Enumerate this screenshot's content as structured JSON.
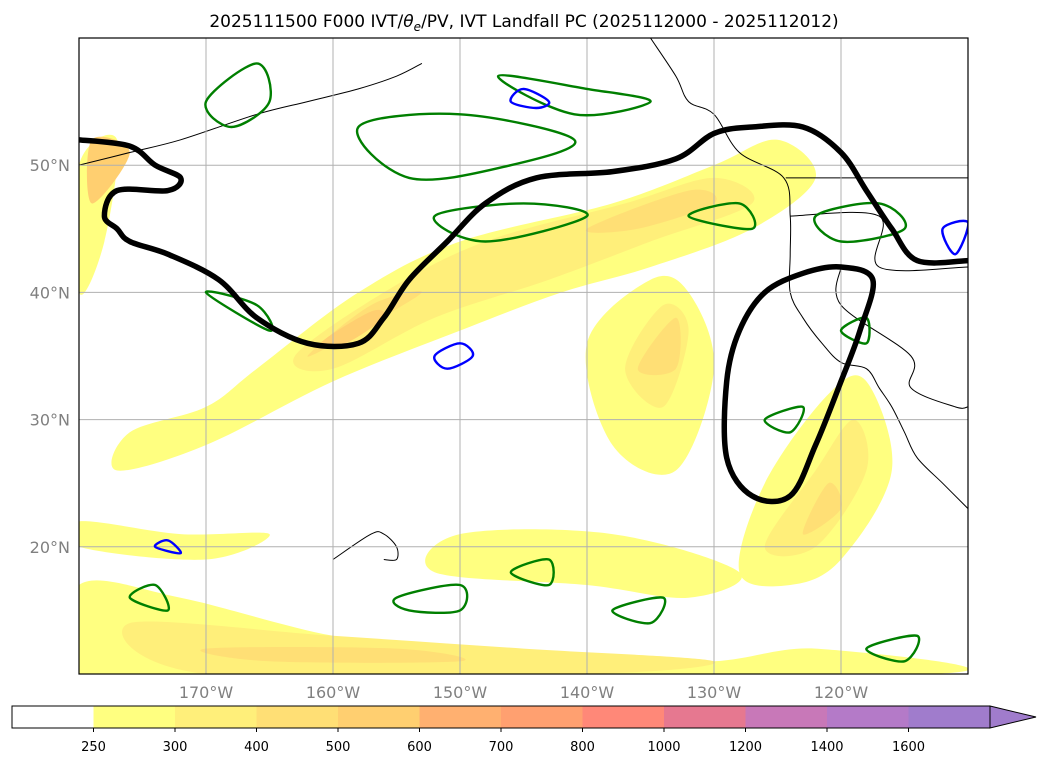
{
  "chart_data": {
    "type": "map",
    "title": "2025111500 F000 IVT/θe/PV, IVT Landfall PC (2025112000 - 2025112012)",
    "title_parts": {
      "before": "2025111500 F000 IVT/",
      "theta": "θ",
      "sub": "e",
      "after": "/PV, IVT Landfall PC (2025112000 - 2025112012)"
    },
    "lon_range": [
      -180,
      -110
    ],
    "lat_range": [
      10,
      60
    ],
    "lon_ticks": [
      {
        "value": -170,
        "label": "170°W"
      },
      {
        "value": -160,
        "label": "160°W"
      },
      {
        "value": -150,
        "label": "150°W"
      },
      {
        "value": -140,
        "label": "140°W"
      },
      {
        "value": -130,
        "label": "130°W"
      },
      {
        "value": -120,
        "label": "120°W"
      }
    ],
    "lat_ticks": [
      {
        "value": 20,
        "label": "20°N"
      },
      {
        "value": 30,
        "label": "30°N"
      },
      {
        "value": 40,
        "label": "40°N"
      },
      {
        "value": 50,
        "label": "50°N"
      }
    ],
    "colorbar": {
      "levels": [
        "250",
        "300",
        "400",
        "500",
        "600",
        "700",
        "800",
        "1000",
        "1200",
        "1400",
        "1600"
      ],
      "colors": [
        "#ffffff",
        "#ffff80",
        "#ffef7a",
        "#ffdf75",
        "#ffcf70",
        "#ffb070",
        "#ffa070",
        "#ff8878",
        "#e67890",
        "#c878b8",
        "#b47ac8",
        "#a07ccc"
      ]
    },
    "ivt_shading": [
      {
        "level": 250,
        "color": "#ffff80",
        "regions": [
          [
            [
              -180,
              50
            ],
            [
              -177,
              52
            ],
            [
              -178,
              44
            ],
            [
              -180,
              40
            ]
          ],
          [
            [
              -166,
              34
            ],
            [
              -158,
              40
            ],
            [
              -150,
              44
            ],
            [
              -138,
              47
            ],
            [
              -130,
              50
            ],
            [
              -125,
              52
            ],
            [
              -122,
              49
            ],
            [
              -127,
              45
            ],
            [
              -135,
              42
            ],
            [
              -142,
              40
            ],
            [
              -150,
              37
            ],
            [
              -160,
              33
            ],
            [
              -170,
              28
            ],
            [
              -177,
              26
            ],
            [
              -176,
              29
            ],
            [
              -170,
              31
            ]
          ],
          [
            [
              -140,
              36
            ],
            [
              -135,
              41
            ],
            [
              -132,
              40
            ],
            [
              -130,
              34
            ],
            [
              -133,
              26
            ],
            [
              -138,
              28
            ]
          ],
          [
            [
              -128,
              18
            ],
            [
              -126,
              25
            ],
            [
              -121,
              32
            ],
            [
              -118,
              33
            ],
            [
              -116,
              26
            ],
            [
              -120,
              19
            ],
            [
              -124,
              17
            ]
          ],
          [
            [
              -180,
              17
            ],
            [
              -172,
              16
            ],
            [
              -160,
              13
            ],
            [
              -150,
              12
            ],
            [
              -140,
              11
            ],
            [
              -130,
              11
            ],
            [
              -122,
              12
            ],
            [
              -113,
              10
            ],
            [
              -180,
              10
            ]
          ],
          [
            [
              -180,
              20
            ],
            [
              -170,
              19
            ],
            [
              -165,
              21
            ],
            [
              -172,
              21
            ],
            [
              -180,
              22
            ]
          ],
          [
            [
              -152,
              18
            ],
            [
              -140,
              17
            ],
            [
              -132,
              16
            ],
            [
              -128,
              18
            ],
            [
              -138,
              21
            ],
            [
              -150,
              21
            ]
          ]
        ]
      },
      {
        "level": 300,
        "color": "#ffef7a",
        "regions": [
          [
            [
              -163,
              35
            ],
            [
              -156,
              40
            ],
            [
              -148,
              44
            ],
            [
              -137,
              47
            ],
            [
              -130,
              49
            ],
            [
              -127,
              47
            ],
            [
              -135,
              44
            ],
            [
              -143,
              41
            ],
            [
              -152,
              38
            ],
            [
              -160,
              34
            ]
          ],
          [
            [
              -137,
              34
            ],
            [
              -134,
              39
            ],
            [
              -132,
              37
            ],
            [
              -134,
              31
            ]
          ],
          [
            [
              -126,
              20
            ],
            [
              -122,
              26
            ],
            [
              -119,
              30
            ],
            [
              -118,
              26
            ],
            [
              -122,
              20
            ]
          ],
          [
            [
              -176,
              14
            ],
            [
              -160,
              13
            ],
            [
              -145,
              12
            ],
            [
              -130,
              11
            ],
            [
              -140,
              10
            ],
            [
              -170,
              10
            ]
          ]
        ]
      },
      {
        "level": 400,
        "color": "#ffdf75",
        "regions": [
          [
            [
              -162,
              35
            ],
            [
              -157,
              39
            ],
            [
              -153,
              40
            ],
            [
              -158,
              37
            ]
          ],
          [
            [
              -140,
              45
            ],
            [
              -132,
              48
            ],
            [
              -130,
              47
            ],
            [
              -136,
              45
            ]
          ],
          [
            [
              -136,
              34
            ],
            [
              -133,
              38
            ],
            [
              -133,
              34
            ]
          ],
          [
            [
              -123,
              21
            ],
            [
              -121,
              25
            ],
            [
              -120,
              23
            ]
          ],
          [
            [
              -170,
              12
            ],
            [
              -155,
              12
            ],
            [
              -150,
              11
            ],
            [
              -165,
              11
            ]
          ]
        ]
      },
      {
        "level": 500,
        "color": "#ffcf70",
        "regions": [
          [
            [
              -161,
              36
            ],
            [
              -157,
              38.5
            ],
            [
              -156,
              38
            ],
            [
              -159,
              36
            ]
          ],
          [
            [
              -176,
              51
            ],
            [
              -179,
              52
            ],
            [
              -179,
              47
            ]
          ]
        ]
      }
    ],
    "pc_contours": [
      [
        [
          -180,
          52
        ],
        [
          -176,
          51.5
        ],
        [
          -174,
          50
        ],
        [
          -172,
          49
        ],
        [
          -173,
          48
        ],
        [
          -177,
          48
        ],
        [
          -178,
          46
        ],
        [
          -177,
          45
        ],
        [
          -176,
          44
        ],
        [
          -173,
          43
        ],
        [
          -169,
          41
        ],
        [
          -166,
          38
        ],
        [
          -162,
          36
        ],
        [
          -158,
          36
        ],
        [
          -156,
          38
        ],
        [
          -154,
          41
        ],
        [
          -151,
          44
        ],
        [
          -148,
          47
        ],
        [
          -144,
          49
        ],
        [
          -138,
          49.5
        ],
        [
          -133,
          50.5
        ],
        [
          -130,
          52.5
        ],
        [
          -127,
          53
        ],
        [
          -123,
          53
        ],
        [
          -120,
          51
        ],
        [
          -118,
          48
        ],
        [
          -116,
          45
        ],
        [
          -114,
          42.5
        ],
        [
          -110,
          42.5
        ]
      ],
      [
        [
          -123,
          41.5
        ],
        [
          -120,
          42
        ],
        [
          -117.5,
          41
        ],
        [
          -118.5,
          37
        ],
        [
          -120,
          33
        ],
        [
          -122,
          28
        ],
        [
          -124,
          24
        ],
        [
          -127,
          24
        ],
        [
          -129,
          27
        ],
        [
          -129,
          33
        ],
        [
          -128,
          37
        ],
        [
          -126,
          40
        ]
      ]
    ],
    "pv_green": [
      [
        [
          -170,
          55
        ],
        [
          -166,
          58
        ],
        [
          -165,
          55
        ],
        [
          -168,
          53
        ]
      ],
      [
        [
          -158,
          53
        ],
        [
          -150,
          54
        ],
        [
          -141,
          52
        ],
        [
          -146,
          50
        ],
        [
          -154,
          49
        ]
      ],
      [
        [
          -147,
          57
        ],
        [
          -140,
          56
        ],
        [
          -135,
          55
        ],
        [
          -141,
          54
        ]
      ],
      [
        [
          -152,
          46
        ],
        [
          -145,
          47
        ],
        [
          -140,
          46
        ],
        [
          -148,
          44
        ]
      ],
      [
        [
          -132,
          46
        ],
        [
          -128,
          47
        ],
        [
          -127,
          45
        ]
      ],
      [
        [
          -122,
          46
        ],
        [
          -117,
          47
        ],
        [
          -115,
          45
        ],
        [
          -120,
          44
        ]
      ],
      [
        [
          -170,
          40
        ],
        [
          -165,
          37
        ],
        [
          -166,
          39
        ]
      ],
      [
        [
          -126,
          30
        ],
        [
          -123,
          31
        ],
        [
          -124,
          29
        ]
      ],
      [
        [
          -120,
          37
        ],
        [
          -118,
          38
        ],
        [
          -118,
          36
        ]
      ],
      [
        [
          -155,
          16
        ],
        [
          -150,
          17
        ],
        [
          -150,
          15
        ],
        [
          -154,
          15
        ]
      ],
      [
        [
          -176,
          16
        ],
        [
          -174,
          17
        ],
        [
          -173,
          15
        ]
      ],
      [
        [
          -146,
          18
        ],
        [
          -143,
          19
        ],
        [
          -143,
          17
        ]
      ],
      [
        [
          -138,
          15
        ],
        [
          -134,
          16
        ],
        [
          -135,
          14
        ]
      ],
      [
        [
          -118,
          12
        ],
        [
          -114,
          13
        ],
        [
          -115,
          11
        ]
      ]
    ],
    "pv_blue": [
      [
        [
          -145,
          56
        ],
        [
          -143,
          55
        ],
        [
          -144,
          54.5
        ],
        [
          -146,
          55
        ]
      ],
      [
        [
          -151,
          34
        ],
        [
          -149,
          35
        ],
        [
          -150,
          36
        ],
        [
          -152,
          35
        ]
      ],
      [
        [
          -174,
          20
        ],
        [
          -172,
          19.5
        ],
        [
          -173,
          20.5
        ]
      ],
      [
        [
          -112,
          45
        ],
        [
          -110,
          45.5
        ],
        [
          -111,
          43
        ]
      ]
    ],
    "coastlines": [
      [
        [
          -135,
          60
        ],
        [
          -133,
          57
        ],
        [
          -132,
          55
        ],
        [
          -130,
          54
        ],
        [
          -128,
          51
        ],
        [
          -124.5,
          49
        ],
        [
          -124,
          46
        ],
        [
          -124,
          43
        ],
        [
          -124,
          40
        ],
        [
          -123,
          38
        ],
        [
          -121.5,
          36
        ],
        [
          -120,
          34.5
        ],
        [
          -118,
          34
        ],
        [
          -117,
          32.5
        ],
        [
          -116,
          31
        ],
        [
          -115,
          29
        ],
        [
          -114,
          27
        ],
        [
          -112,
          25
        ],
        [
          -110,
          23
        ]
      ],
      [
        [
          -124,
          49
        ],
        [
          -123,
          49
        ],
        [
          -110,
          49
        ]
      ],
      [
        [
          -124,
          46
        ],
        [
          -117,
          46
        ],
        [
          -117,
          42
        ],
        [
          -110,
          42
        ]
      ],
      [
        [
          -120,
          42
        ],
        [
          -120,
          39
        ],
        [
          -114.5,
          35
        ],
        [
          -114.5,
          32.5
        ],
        [
          -111,
          31
        ],
        [
          -110,
          31
        ]
      ],
      [
        [
          -180,
          50
        ],
        [
          -176,
          51
        ],
        [
          -172,
          52
        ],
        [
          -166,
          54
        ],
        [
          -162,
          55
        ],
        [
          -158,
          56
        ],
        [
          -155,
          57
        ],
        [
          -153,
          58
        ]
      ],
      [
        [
          -160,
          19
        ],
        [
          -157,
          21
        ],
        [
          -156,
          21
        ],
        [
          -155,
          20
        ],
        [
          -155,
          19
        ],
        [
          -156,
          19
        ]
      ]
    ]
  }
}
